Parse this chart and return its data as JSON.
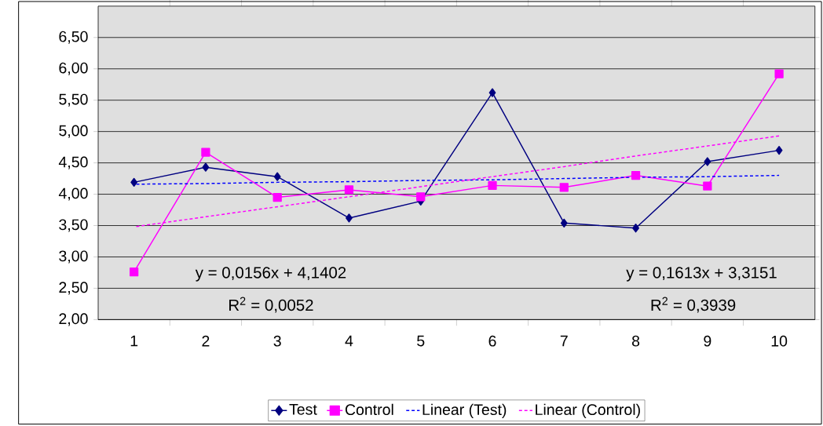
{
  "chart_data": {
    "type": "line",
    "categories": [
      "1",
      "2",
      "3",
      "4",
      "5",
      "6",
      "7",
      "8",
      "9",
      "10"
    ],
    "series": [
      {
        "name": "Test",
        "color": "#000080",
        "marker": "diamond",
        "line_style": "solid",
        "values": [
          4.19,
          4.43,
          4.28,
          3.62,
          3.89,
          5.62,
          3.54,
          3.46,
          4.52,
          4.7
        ]
      },
      {
        "name": "Control",
        "color": "#ff00ff",
        "marker": "square",
        "line_style": "solid",
        "values": [
          2.76,
          4.67,
          3.95,
          4.07,
          3.96,
          4.14,
          4.11,
          4.3,
          4.13,
          5.92
        ]
      },
      {
        "name": "Linear (Test)",
        "color": "#0000ff",
        "marker": "none",
        "line_style": "dotted",
        "values": [
          4.16,
          4.17,
          4.19,
          4.2,
          4.22,
          4.23,
          4.25,
          4.27,
          4.28,
          4.3
        ]
      },
      {
        "name": "Linear (Control)",
        "color": "#ff00ff",
        "marker": "none",
        "line_style": "dotted",
        "values": [
          3.48,
          3.64,
          3.8,
          3.96,
          4.12,
          4.28,
          4.44,
          4.61,
          4.77,
          4.93
        ]
      }
    ],
    "ylim": [
      2,
      7
    ],
    "yticks": [
      {
        "value": 2,
        "label": "2,00"
      },
      {
        "value": 2.5,
        "label": "2,50"
      },
      {
        "value": 3,
        "label": "3,00"
      },
      {
        "value": 3.5,
        "label": "3,50"
      },
      {
        "value": 4,
        "label": "4,00"
      },
      {
        "value": 4.5,
        "label": "4,50"
      },
      {
        "value": 5,
        "label": "5,00"
      },
      {
        "value": 5.5,
        "label": "5,50"
      },
      {
        "value": 6,
        "label": "6,00"
      },
      {
        "value": 6.5,
        "label": "6,50"
      }
    ],
    "grid": "y",
    "legend": "bottom",
    "annotations": [
      "y = 0,0156x + 4,1402",
      "R$^{2}$ = 0,0052",
      "y = 0,1613x + 3,3151",
      "R$^{2}$ = 0,3939"
    ]
  }
}
